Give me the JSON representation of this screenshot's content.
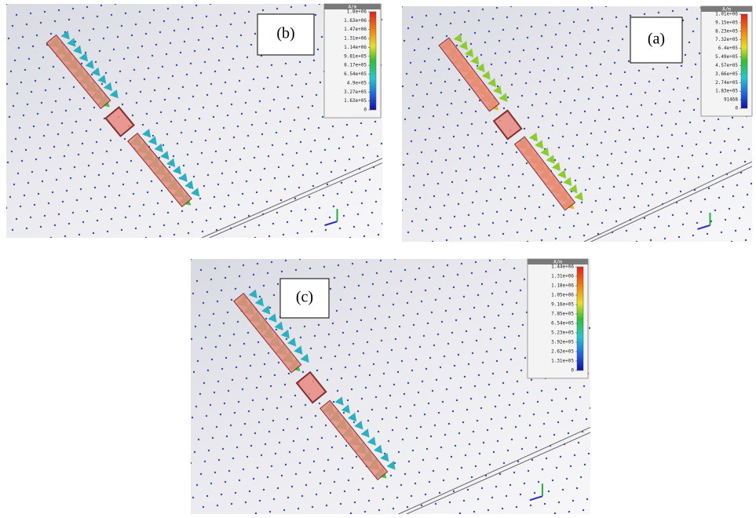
{
  "panels": [
    {
      "label": "(b)",
      "unit": "A/m",
      "colorbar": [
        "1.8e+06",
        "1.63e+06",
        "1.47e+06",
        "1.31e+06",
        "1.14e+06",
        "9.81e+05",
        "8.17e+05",
        "6.54e+05",
        "4.9e+05",
        "3.27e+05",
        "1.63e+05",
        "0"
      ]
    },
    {
      "label": "(a)",
      "unit": "A/m",
      "colorbar": [
        "1.01e+06",
        "9.15e+05",
        "8.23e+05",
        "7.32e+05",
        "6.4e+05",
        "5.49e+05",
        "4.57e+05",
        "3.66e+05",
        "2.74e+05",
        "1.83e+05",
        "91468",
        "0"
      ]
    },
    {
      "label": "(c)",
      "unit": "A/m",
      "colorbar": [
        "1.44e+06",
        "1.31e+06",
        "1.18e+06",
        "1.05e+06",
        "9.16e+05",
        "7.85e+05",
        "6.54e+05",
        "5.23e+05",
        "3.92e+05",
        "2.62e+05",
        "1.31e+05",
        "0"
      ]
    }
  ]
}
